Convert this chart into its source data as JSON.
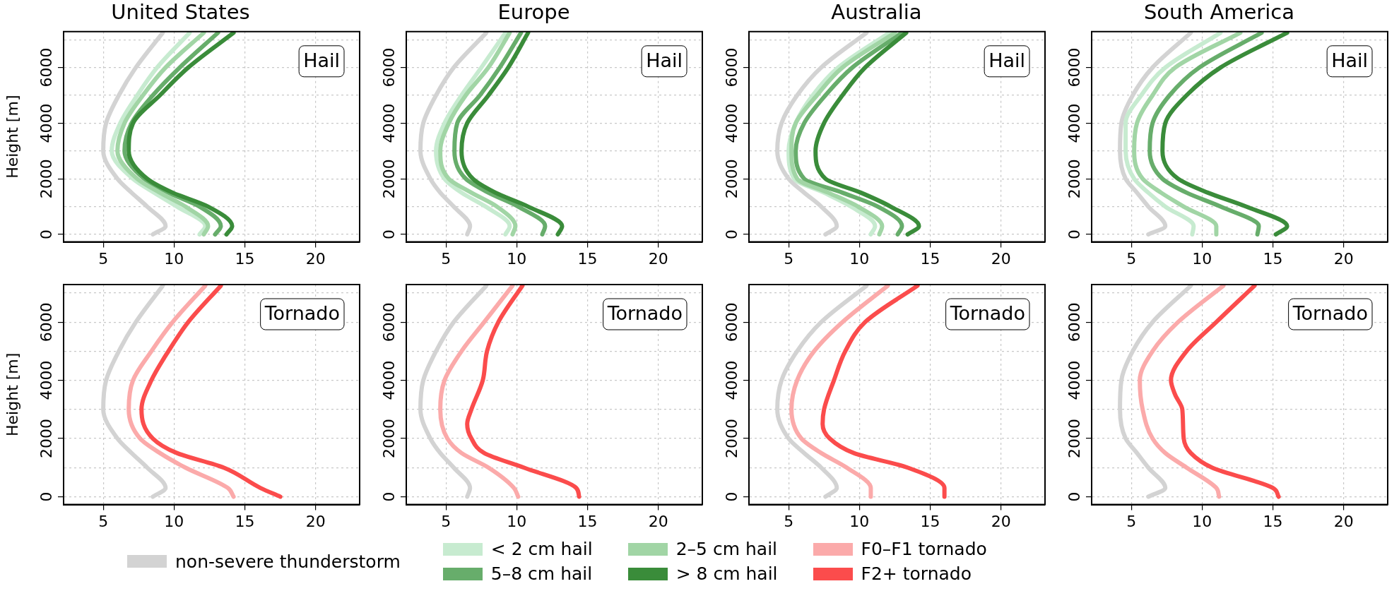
{
  "chart_data": [
    {
      "type": "line",
      "title": "United States",
      "ylabel": "Height [m]",
      "annotations": [
        "Hail"
      ],
      "xlim": [
        2.2,
        23.1
      ],
      "xticks": [
        5,
        10,
        15,
        20
      ],
      "ylim": [
        -270,
        7290
      ],
      "yticks": [
        0,
        {
          "value": 1000,
          "label": null
        },
        2000,
        {
          "value": 3000,
          "label": null
        },
        4000,
        {
          "value": 5000,
          "label": null
        },
        6000,
        {
          "value": 7000,
          "label": null
        }
      ],
      "grid": true,
      "legend": "bottom",
      "series": [
        {
          "name": "non-severe thunderstorm",
          "color": "#d3d3d3",
          "x": [
            8.5,
            9.4,
            8.1,
            7.0,
            6.0,
            5.0,
            5.2,
            6.1,
            7.3,
            9.2
          ],
          "values": [
            0,
            300,
            1000,
            1500,
            2000,
            3000,
            4000,
            5000,
            6000,
            7250
          ]
        },
        {
          "name": "< 2 cm hail",
          "color": "#c7ebd0",
          "x": [
            11.8,
            12.2,
            10.2,
            8.6,
            7.1,
            5.6,
            6.2,
            7.4,
            8.8,
            11.1
          ],
          "values": [
            0,
            300,
            1000,
            1500,
            2000,
            3000,
            4000,
            5000,
            6000,
            7250
          ]
        },
        {
          "name": "5–8 cm hail",
          "color": "#67ad6b",
          "x": [
            12.9,
            13.3,
            11.8,
            9.6,
            7.9,
            6.5,
            7.0,
            8.5,
            10.4,
            13.1
          ],
          "values": [
            0,
            300,
            1000,
            1500,
            2000,
            3000,
            4000,
            5000,
            6000,
            7250
          ]
        },
        {
          "name": "2–5 cm hail",
          "color": "#a1d5a5",
          "x": [
            12.1,
            12.4,
            10.8,
            9.0,
            7.4,
            6.0,
            6.5,
            7.8,
            9.4,
            12.1
          ],
          "values": [
            0,
            300,
            1000,
            1500,
            2000,
            3000,
            4000,
            5000,
            6000,
            7250
          ]
        },
        {
          "name": "> 8 cm hail",
          "color": "#3a8c3a",
          "x": [
            13.7,
            14.1,
            12.4,
            9.9,
            8.1,
            6.8,
            7.1,
            9.0,
            11.0,
            14.2
          ],
          "values": [
            0,
            300,
            1000,
            1500,
            2000,
            3000,
            4000,
            5000,
            6000,
            7250
          ]
        }
      ]
    },
    {
      "type": "line",
      "title": "Europe",
      "annotations": [
        "Hail"
      ],
      "xlim": [
        2.2,
        23.1
      ],
      "xticks": [
        5,
        10,
        15,
        20
      ],
      "ylim": [
        -270,
        7290
      ],
      "yticks": [
        0,
        {
          "value": 1000,
          "label": null
        },
        2000,
        {
          "value": 3000,
          "label": null
        },
        4000,
        {
          "value": 5000,
          "label": null
        },
        6000,
        {
          "value": 7000,
          "label": null
        }
      ],
      "grid": true,
      "legend": "bottom",
      "series": [
        {
          "name": "non-severe thunderstorm",
          "color": "#d3d3d3",
          "x": [
            6.5,
            6.7,
            5.55,
            4.6,
            3.9,
            3.2,
            3.4,
            4.3,
            5.55,
            7.85
          ],
          "values": [
            0,
            300,
            1000,
            1500,
            2000,
            3000,
            4000,
            5000,
            6000,
            7250
          ]
        },
        {
          "name": "< 2 cm hail",
          "color": "#c7ebd0",
          "x": [
            9.2,
            9.5,
            7.8,
            6.1,
            4.9,
            4.3,
            4.9,
            6.1,
            7.5,
            9.2
          ],
          "values": [
            0,
            300,
            1000,
            1500,
            2000,
            3000,
            4000,
            5000,
            6000,
            7250
          ]
        },
        {
          "name": "5–8 cm hail",
          "color": "#67ad6b",
          "x": [
            11.8,
            12.0,
            10.1,
            8.0,
            6.4,
            5.6,
            5.8,
            7.4,
            8.8,
            10.3
          ],
          "values": [
            0,
            300,
            1000,
            1500,
            2000,
            3000,
            4000,
            5000,
            6000,
            7250
          ]
        },
        {
          "name": "2–5 cm hail",
          "color": "#a1d5a5",
          "x": [
            9.7,
            9.9,
            8.6,
            6.8,
            5.2,
            4.6,
            5.2,
            6.4,
            8.0,
            9.5
          ],
          "values": [
            0,
            300,
            1000,
            1500,
            2000,
            3000,
            4000,
            5000,
            6000,
            7250
          ]
        },
        {
          "name": "> 8 cm hail",
          "color": "#3a8c3a",
          "x": [
            12.9,
            13.2,
            10.8,
            8.5,
            6.9,
            6.1,
            6.5,
            8.0,
            9.4,
            10.8
          ],
          "values": [
            0,
            300,
            1000,
            1500,
            2000,
            3000,
            4000,
            5000,
            6000,
            7250
          ]
        }
      ]
    },
    {
      "type": "line",
      "title": "Australia",
      "annotations": [
        "Hail"
      ],
      "xlim": [
        2.2,
        23.1
      ],
      "xticks": [
        5,
        10,
        15,
        20
      ],
      "ylim": [
        -270,
        7290
      ],
      "yticks": [
        0,
        {
          "value": 1000,
          "label": null
        },
        2000,
        {
          "value": 3000,
          "label": null
        },
        4000,
        {
          "value": 5000,
          "label": null
        },
        6000,
        {
          "value": 7000,
          "label": null
        }
      ],
      "grid": true,
      "legend": "bottom",
      "series": [
        {
          "name": "non-severe thunderstorm",
          "color": "#d3d3d3",
          "x": [
            7.6,
            8.4,
            7.3,
            6.1,
            5.0,
            4.2,
            4.5,
            5.6,
            7.3,
            10.5
          ],
          "values": [
            0,
            300,
            1000,
            1500,
            2000,
            3000,
            4000,
            5000,
            6000,
            7250
          ]
        },
        {
          "name": "< 2 cm hail",
          "color": "#c7ebd0",
          "x": [
            10.8,
            11.1,
            9.4,
            7.5,
            5.4,
            5.0,
            5.5,
            6.7,
            8.5,
            12.1
          ],
          "values": [
            0,
            300,
            1000,
            1500,
            2000,
            3000,
            4000,
            5000,
            6000,
            7250
          ]
        },
        {
          "name": "5–8 cm hail",
          "color": "#67ad6b",
          "x": [
            12.7,
            13.0,
            11.3,
            8.8,
            6.1,
            5.5,
            6.1,
            7.6,
            9.5,
            13.0
          ],
          "values": [
            0,
            300,
            1000,
            1500,
            2000,
            3000,
            4000,
            5000,
            6000,
            7250
          ]
        },
        {
          "name": "2–5 cm hail",
          "color": "#a1d5a5",
          "x": [
            11.4,
            11.6,
            9.9,
            7.8,
            5.6,
            5.2,
            5.5,
            7.0,
            8.8,
            12.5
          ],
          "values": [
            0,
            300,
            1000,
            1500,
            2000,
            3000,
            4000,
            5000,
            6000,
            7250
          ]
        },
        {
          "name": "> 8 cm hail",
          "color": "#3a8c3a",
          "x": [
            13.4,
            14.2,
            12.2,
            10.1,
            7.6,
            6.9,
            7.5,
            8.8,
            10.4,
            13.3
          ],
          "values": [
            0,
            300,
            1000,
            1500,
            2000,
            3000,
            4000,
            5000,
            6000,
            7250
          ]
        }
      ]
    },
    {
      "type": "line",
      "title": "South America",
      "annotations": [
        "Hail"
      ],
      "xlim": [
        2.2,
        23.1
      ],
      "xticks": [
        5,
        10,
        15,
        20
      ],
      "ylim": [
        -270,
        7290
      ],
      "yticks": [
        0,
        {
          "value": 1000,
          "label": null
        },
        2000,
        {
          "value": 3000,
          "label": null
        },
        4000,
        {
          "value": 5000,
          "label": null
        },
        6000,
        {
          "value": 7000,
          "label": null
        }
      ],
      "grid": true,
      "legend": "bottom",
      "series": [
        {
          "name": "non-severe thunderstorm",
          "color": "#d3d3d3",
          "x": [
            6.2,
            7.4,
            6.2,
            5.4,
            4.6,
            4.2,
            4.3,
            5.1,
            6.5,
            9.2
          ],
          "values": [
            0,
            300,
            1000,
            1500,
            2000,
            3000,
            4000,
            5000,
            6000,
            7250
          ]
        },
        {
          "name": "< 2 cm hail",
          "color": "#c7ebd0",
          "x": [
            9.3,
            9.4,
            7.4,
            6.2,
            5.2,
            4.6,
            4.6,
            5.7,
            7.4,
            11.3
          ],
          "values": [
            0,
            300,
            1000,
            1500,
            2000,
            3000,
            4000,
            5000,
            6000,
            7250
          ]
        },
        {
          "name": "5–8 cm hail",
          "color": "#67ad6b",
          "x": [
            13.9,
            14.0,
            11.3,
            8.9,
            7.2,
            6.3,
            6.5,
            7.7,
            9.8,
            14.2
          ],
          "values": [
            0,
            300,
            1000,
            1500,
            2000,
            3000,
            4000,
            5000,
            6000,
            7250
          ]
        },
        {
          "name": "2–5 cm hail",
          "color": "#a1d5a5",
          "x": [
            11.0,
            11.0,
            8.7,
            7.1,
            5.8,
            5.2,
            5.4,
            6.5,
            8.1,
            12.7
          ],
          "values": [
            0,
            300,
            1000,
            1500,
            2000,
            3000,
            4000,
            5000,
            6000,
            7250
          ]
        },
        {
          "name": "> 8 cm hail",
          "color": "#3a8c3a",
          "x": [
            15.2,
            16.0,
            13.1,
            10.4,
            8.3,
            7.2,
            7.4,
            8.9,
            11.3,
            16.0
          ],
          "values": [
            0,
            300,
            1000,
            1500,
            2000,
            3000,
            4000,
            5000,
            6000,
            7250
          ]
        }
      ]
    },
    {
      "type": "line",
      "ylabel": "Height [m]",
      "annotations": [
        "Tornado"
      ],
      "xlim": [
        2.2,
        23.1
      ],
      "xticks": [
        5,
        10,
        15,
        20
      ],
      "ylim": [
        -270,
        7290
      ],
      "yticks": [
        0,
        {
          "value": 1000,
          "label": null
        },
        2000,
        {
          "value": 3000,
          "label": null
        },
        4000,
        {
          "value": 5000,
          "label": null
        },
        6000,
        {
          "value": 7000,
          "label": null
        }
      ],
      "grid": true,
      "legend": "bottom",
      "series": [
        {
          "name": "non-severe thunderstorm",
          "color": "#d3d3d3",
          "x": [
            8.5,
            9.4,
            8.1,
            7.0,
            6.0,
            5.0,
            5.2,
            6.1,
            7.3,
            9.2
          ],
          "values": [
            0,
            300,
            1000,
            1500,
            2000,
            3000,
            4000,
            5000,
            6000,
            7250
          ]
        },
        {
          "name": "F0–F1 tornado",
          "color": "#fbaaaa",
          "x": [
            14.2,
            13.8,
            10.8,
            9.0,
            7.6,
            6.8,
            7.1,
            8.4,
            9.9,
            12.2
          ],
          "values": [
            0,
            300,
            1000,
            1500,
            2000,
            3000,
            4000,
            5000,
            6000,
            7250
          ]
        },
        {
          "name": "F2+ tornado",
          "color": "#fb4c4c",
          "x": [
            17.5,
            16.1,
            13.5,
            10.2,
            8.5,
            7.7,
            8.4,
            9.6,
            11.0,
            13.3
          ],
          "values": [
            0,
            300,
            1000,
            1500,
            2000,
            3000,
            4000,
            5000,
            6000,
            7250
          ]
        }
      ]
    },
    {
      "type": "line",
      "annotations": [
        "Tornado"
      ],
      "xlim": [
        2.2,
        23.1
      ],
      "xticks": [
        5,
        10,
        15,
        20
      ],
      "ylim": [
        -270,
        7290
      ],
      "yticks": [
        0,
        {
          "value": 1000,
          "label": null
        },
        2000,
        {
          "value": 3000,
          "label": null
        },
        4000,
        {
          "value": 5000,
          "label": null
        },
        6000,
        {
          "value": 7000,
          "label": null
        }
      ],
      "grid": true,
      "legend": "bottom",
      "series": [
        {
          "name": "non-severe thunderstorm",
          "color": "#d3d3d3",
          "x": [
            6.5,
            6.7,
            5.55,
            4.6,
            3.9,
            3.2,
            3.4,
            4.3,
            5.55,
            7.85
          ],
          "values": [
            0,
            300,
            1000,
            1500,
            2000,
            3000,
            4000,
            5000,
            6000,
            7250
          ]
        },
        {
          "name": "F0–F1 tornado",
          "color": "#fbaaaa",
          "x": [
            10.1,
            9.8,
            8.0,
            6.1,
            5.1,
            4.6,
            4.9,
            6.1,
            7.7,
            9.7
          ],
          "values": [
            0,
            300,
            1000,
            1500,
            2000,
            3000,
            4000,
            5000,
            6000,
            7250
          ]
        },
        {
          "name": "F2+ tornado",
          "color": "#fb4c4c",
          "x": [
            14.4,
            14.2,
            10.5,
            7.7,
            6.8,
            6.5,
            6.8,
            7.6,
            7.9,
            8.7,
            10.4
          ],
          "values": [
            0,
            300,
            1000,
            1500,
            2000,
            2500,
            3000,
            4000,
            5000,
            6000,
            7250
          ]
        }
      ]
    },
    {
      "type": "line",
      "annotations": [
        "Tornado"
      ],
      "xlim": [
        2.2,
        23.1
      ],
      "xticks": [
        5,
        10,
        15,
        20
      ],
      "ylim": [
        -270,
        7290
      ],
      "yticks": [
        0,
        {
          "value": 1000,
          "label": null
        },
        2000,
        {
          "value": 3000,
          "label": null
        },
        4000,
        {
          "value": 5000,
          "label": null
        },
        6000,
        {
          "value": 7000,
          "label": null
        }
      ],
      "grid": true,
      "legend": "bottom",
      "series": [
        {
          "name": "non-severe thunderstorm",
          "color": "#d3d3d3",
          "x": [
            7.6,
            8.4,
            7.3,
            6.1,
            5.0,
            4.2,
            4.5,
            5.6,
            7.3,
            10.5
          ],
          "values": [
            0,
            300,
            1000,
            1500,
            2000,
            3000,
            4000,
            5000,
            6000,
            7250
          ]
        },
        {
          "name": "F0–F1 tornado",
          "color": "#fbaaaa",
          "x": [
            10.8,
            10.8,
            9.1,
            7.3,
            5.9,
            5.2,
            5.6,
            6.8,
            8.8,
            12.0
          ],
          "values": [
            0,
            300,
            1000,
            1500,
            2000,
            3000,
            4000,
            5000,
            6000,
            7250
          ]
        },
        {
          "name": "F2+ tornado",
          "color": "#fb4c4c",
          "x": [
            16.0,
            16.0,
            13.4,
            9.6,
            7.9,
            7.4,
            7.5,
            8.2,
            9.0,
            10.4,
            14.1
          ],
          "values": [
            0,
            300,
            1000,
            1500,
            2000,
            2500,
            3000,
            4000,
            5000,
            6000,
            7250
          ]
        }
      ]
    },
    {
      "type": "line",
      "annotations": [
        "Tornado"
      ],
      "xlim": [
        2.2,
        23.1
      ],
      "xticks": [
        5,
        10,
        15,
        20
      ],
      "ylim": [
        -270,
        7290
      ],
      "yticks": [
        0,
        {
          "value": 1000,
          "label": null
        },
        2000,
        {
          "value": 3000,
          "label": null
        },
        4000,
        {
          "value": 5000,
          "label": null
        },
        6000,
        {
          "value": 7000,
          "label": null
        }
      ],
      "grid": true,
      "legend": "bottom",
      "series": [
        {
          "name": "non-severe thunderstorm",
          "color": "#d3d3d3",
          "x": [
            6.2,
            7.4,
            6.2,
            5.4,
            4.6,
            4.2,
            4.3,
            5.1,
            6.5,
            9.2
          ],
          "values": [
            0,
            300,
            1000,
            1500,
            2000,
            3000,
            4000,
            5000,
            6000,
            7250
          ]
        },
        {
          "name": "F0–F1 tornado",
          "color": "#fbaaaa",
          "x": [
            11.2,
            11.0,
            8.9,
            7.4,
            6.5,
            5.8,
            5.6,
            6.5,
            8.3,
            11.5
          ],
          "values": [
            0,
            300,
            1000,
            1500,
            2000,
            3000,
            4000,
            5000,
            6000,
            7250
          ]
        },
        {
          "name": "F2+ tornado",
          "color": "#fb4c4c",
          "x": [
            15.4,
            15.0,
            10.7,
            9.2,
            8.7,
            8.6,
            8.1,
            7.8,
            8.9,
            11.0,
            13.7
          ],
          "values": [
            0,
            300,
            1000,
            1500,
            2000,
            3000,
            3500,
            4000,
            5000,
            6000,
            7250
          ]
        }
      ]
    }
  ]
}
